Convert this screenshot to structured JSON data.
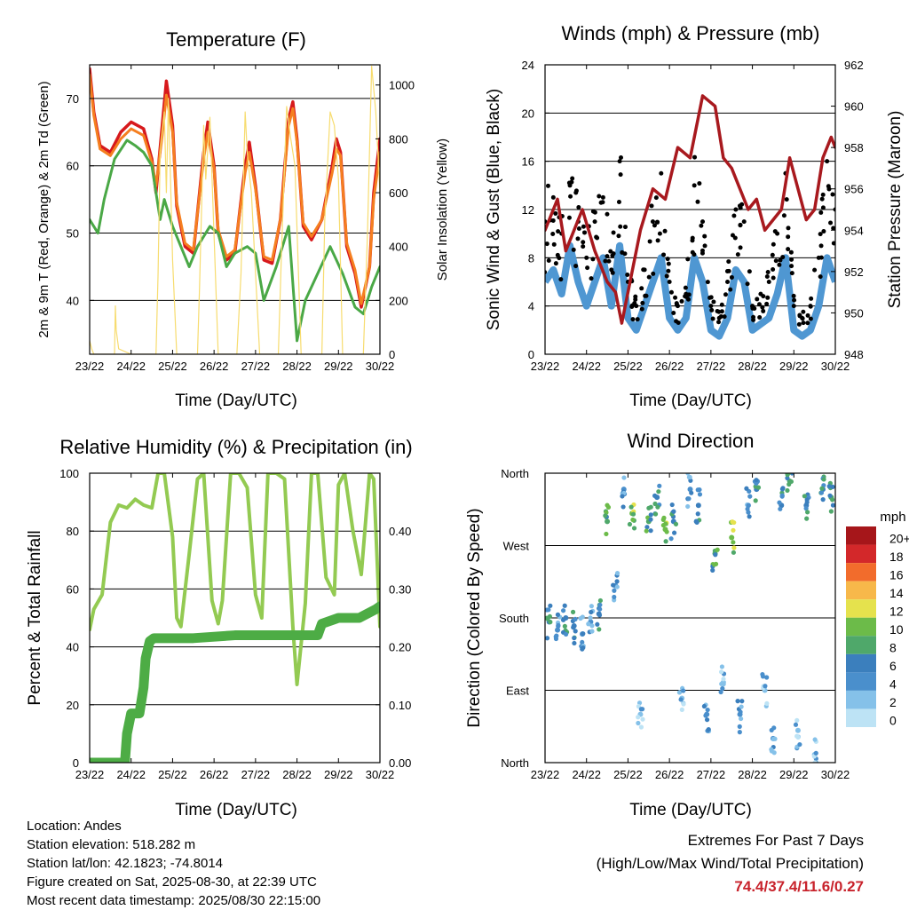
{
  "x_ticks": [
    "23/22",
    "24/22",
    "25/22",
    "26/22",
    "27/22",
    "28/22",
    "29/22",
    "30/22"
  ],
  "info": {
    "location": "Location: Andes",
    "elevation": "Station elevation: 518.282 m",
    "latlon": "Station lat/lon: 42.1823; -74.8014",
    "created": "Figure created on Sat, 2025-08-30, at 22:39 UTC",
    "recent": "Most recent data timestamp: 2025/08/30 22:15:00"
  },
  "extremes": {
    "title": "Extremes For Past 7 Days",
    "subtitle": "(High/Low/Max Wind/Total Precipitation)",
    "values": "74.4/37.4/11.6/0.27"
  },
  "colors": {
    "temp_2m": "#d7191c",
    "temp_9m": "#f57f20",
    "dewpoint": "#4aa846",
    "solar": "#f7dc6f",
    "sonic_wind": "#4f97d2",
    "gust": "#000000",
    "pressure": "#a8191e",
    "rh": "#93ca52",
    "precip": "#4dac45"
  },
  "chart_data": [
    {
      "type": "line",
      "title": "Temperature (F)",
      "xlabel": "Time (Day/UTC)",
      "ylabel": "2m & 9m T (Red, Orange) & 2m Td (Green)",
      "ylabel_right": "Solar Insolation (Yellow)",
      "ylim": [
        32,
        75
      ],
      "yticks": [
        40,
        50,
        60,
        70
      ],
      "ylim_right": [
        0,
        1075
      ],
      "yticks_right": [
        0,
        200,
        400,
        600,
        800,
        1000
      ],
      "xlim": [
        0,
        7
      ],
      "grid": true,
      "series": [
        {
          "key": "temp_2m",
          "x": [
            0,
            0.1,
            0.25,
            0.5,
            0.75,
            1,
            1.3,
            1.5,
            1.6,
            1.75,
            1.85,
            2.0,
            2.1,
            2.3,
            2.5,
            2.75,
            2.85,
            3.0,
            3.1,
            3.3,
            3.5,
            3.75,
            3.85,
            4.0,
            4.2,
            4.4,
            4.6,
            4.8,
            4.9,
            5.0,
            5.15,
            5.35,
            5.6,
            5.85,
            5.95,
            6.05,
            6.2,
            6.4,
            6.55,
            6.75,
            6.85,
            7.0
          ],
          "values": [
            74.4,
            68,
            63,
            62,
            65,
            66.5,
            65.5,
            61,
            56,
            66,
            72.6,
            66,
            54,
            48,
            47,
            62,
            66.5,
            60,
            50,
            46,
            47,
            60,
            63.5,
            57,
            46,
            45.5,
            52,
            67,
            69.5,
            64,
            51,
            49,
            52,
            60,
            64,
            62,
            48,
            44,
            39,
            45,
            56,
            64
          ]
        },
        {
          "key": "temp_9m",
          "x": [
            0,
            0.1,
            0.25,
            0.5,
            0.75,
            1,
            1.3,
            1.5,
            1.6,
            1.75,
            1.85,
            2.0,
            2.1,
            2.3,
            2.5,
            2.75,
            2.85,
            3.0,
            3.1,
            3.3,
            3.5,
            3.75,
            3.85,
            4.0,
            4.2,
            4.4,
            4.6,
            4.8,
            4.9,
            5.0,
            5.15,
            5.35,
            5.6,
            5.85,
            5.95,
            6.05,
            6.2,
            6.4,
            6.55,
            6.75,
            6.85,
            7.0
          ],
          "values": [
            73.5,
            67.5,
            62.5,
            61.5,
            64,
            65.5,
            64.5,
            60.5,
            57,
            64.5,
            70.5,
            65,
            54.5,
            48.5,
            47.5,
            61,
            65,
            59.5,
            50.5,
            46.5,
            47.5,
            59,
            62,
            56.5,
            46.5,
            46,
            52,
            66,
            68.5,
            63.5,
            51.5,
            49.5,
            52,
            59,
            62.5,
            61.5,
            48.5,
            44.5,
            39.5,
            45,
            55,
            62
          ]
        },
        {
          "key": "dewpoint",
          "x": [
            0,
            0.2,
            0.35,
            0.6,
            0.9,
            1.1,
            1.3,
            1.5,
            1.7,
            1.8,
            2.0,
            2.2,
            2.4,
            2.6,
            2.9,
            3.1,
            3.3,
            3.5,
            3.8,
            4.0,
            4.2,
            4.5,
            4.8,
            5.0,
            5.2,
            5.5,
            5.8,
            6.1,
            6.4,
            6.6,
            6.8,
            7.0
          ],
          "values": [
            52,
            50,
            55,
            61,
            63.8,
            63,
            62,
            60,
            52,
            55,
            51,
            48,
            45,
            48,
            51,
            50,
            45,
            47,
            48,
            47,
            40,
            45,
            51,
            34,
            40,
            44,
            48,
            44,
            39,
            38,
            42,
            45
          ]
        },
        {
          "key": "solar",
          "axis": "right",
          "x": [
            0,
            0.05,
            0.1,
            0.3,
            0.6,
            0.62,
            0.64,
            0.7,
            1.0,
            1.6,
            1.65,
            1.7,
            1.8,
            1.85,
            1.9,
            2.0,
            2.1,
            2.6,
            2.65,
            2.75,
            2.8,
            2.9,
            3.1,
            3.55,
            3.65,
            3.75,
            3.8,
            3.9,
            4.1,
            4.55,
            4.62,
            4.75,
            4.85,
            4.95,
            5.1,
            5.6,
            5.67,
            5.8,
            5.9,
            6.0,
            6.1,
            6.6,
            6.7,
            6.8,
            6.9,
            7.0
          ],
          "values": [
            50,
            20,
            0,
            0,
            0,
            180,
            90,
            20,
            0,
            0,
            300,
            750,
            900,
            600,
            950,
            350,
            0,
            0,
            250,
            850,
            650,
            880,
            0,
            0,
            300,
            900,
            750,
            600,
            0,
            0,
            350,
            920,
            800,
            700,
            0,
            0,
            500,
            900,
            850,
            650,
            0,
            0,
            450,
            1070,
            900,
            600
          ]
        }
      ]
    },
    {
      "type": "scatter",
      "title": "Winds (mph) & Pressure (mb)",
      "xlabel": "Time (Day/UTC)",
      "ylabel": "Sonic Wind & Gust (Blue, Black)",
      "ylabel_right": "Station Pressure (Maroon)",
      "ylim": [
        0,
        24
      ],
      "yticks": [
        0,
        4,
        8,
        12,
        16,
        20,
        24
      ],
      "ylim_right": [
        948,
        962
      ],
      "yticks_right": [
        948,
        950,
        952,
        954,
        956,
        958,
        960,
        962
      ],
      "xlim": [
        0,
        7
      ],
      "grid": true,
      "series": [
        {
          "key": "sonic_wind",
          "x": [
            0,
            0.2,
            0.4,
            0.6,
            0.8,
            1.0,
            1.2,
            1.4,
            1.6,
            1.8,
            2.0,
            2.2,
            2.4,
            2.6,
            2.8,
            3.0,
            3.2,
            3.4,
            3.6,
            3.8,
            4.0,
            4.2,
            4.4,
            4.6,
            4.8,
            5.0,
            5.2,
            5.4,
            5.6,
            5.8,
            6.0,
            6.2,
            6.4,
            6.6,
            6.8,
            7.0
          ],
          "values": [
            6,
            7,
            5,
            9,
            6,
            4,
            6,
            8,
            4,
            9,
            3,
            2,
            4,
            6,
            8,
            3,
            2,
            3,
            8,
            6,
            2,
            1.5,
            3,
            7,
            6,
            2,
            2.5,
            3,
            5,
            8,
            2,
            1.5,
            2,
            4,
            8,
            6
          ]
        },
        {
          "key": "gust",
          "x": [
            0,
            0.2,
            0.4,
            0.6,
            0.8,
            1.0,
            1.2,
            1.4,
            1.6,
            1.8,
            2.0,
            2.2,
            2.4,
            2.6,
            2.8,
            3.0,
            3.2,
            3.4,
            3.6,
            3.8,
            4.0,
            4.2,
            4.4,
            4.6,
            4.8,
            5.0,
            5.2,
            5.4,
            5.6,
            5.8,
            6.0,
            6.2,
            6.4,
            6.6,
            6.8,
            7.0
          ],
          "values": [
            11,
            13,
            10,
            14,
            11,
            8,
            11,
            13,
            7,
            16,
            6,
            4,
            7,
            11,
            15,
            6,
            4,
            5,
            14,
            11,
            4,
            3,
            6,
            12,
            11,
            4,
            5,
            6,
            10,
            15,
            4,
            3,
            4,
            8,
            16,
            12
          ]
        },
        {
          "key": "pressure",
          "axis": "right",
          "x": [
            0,
            0.3,
            0.5,
            0.9,
            1.2,
            1.5,
            1.7,
            1.85,
            2.0,
            2.3,
            2.6,
            2.9,
            3.2,
            3.5,
            3.8,
            4.1,
            4.3,
            4.5,
            4.7,
            4.9,
            5.1,
            5.3,
            5.5,
            5.7,
            5.9,
            6.1,
            6.3,
            6.5,
            6.7,
            6.9,
            7.0
          ],
          "values": [
            954,
            955.5,
            953,
            955,
            953,
            951.5,
            951,
            949.5,
            951,
            954,
            956,
            955.5,
            958,
            957.5,
            960.5,
            960,
            957.5,
            957,
            956,
            955,
            955.5,
            954,
            954.5,
            955,
            957.5,
            956,
            954.5,
            955,
            957.5,
            958.5,
            958
          ]
        }
      ]
    },
    {
      "type": "line",
      "title": "Relative Humidity (%) & Precipitation (in)",
      "xlabel": "Time (Day/UTC)",
      "ylabel": "Percent & Total Rainfall",
      "ylim": [
        0,
        100
      ],
      "yticks": [
        0,
        20,
        40,
        60,
        80,
        100
      ],
      "ylim_right": [
        0,
        0.5
      ],
      "yticks_right": [
        "0.00",
        "0.10",
        "0.20",
        "0.30",
        "0.40"
      ],
      "xlim": [
        0,
        7
      ],
      "grid": true,
      "series": [
        {
          "key": "rh",
          "x": [
            0,
            0.1,
            0.3,
            0.5,
            0.7,
            0.9,
            1.1,
            1.3,
            1.5,
            1.65,
            1.8,
            2.0,
            2.1,
            2.2,
            2.4,
            2.6,
            2.75,
            2.95,
            3.1,
            3.2,
            3.4,
            3.6,
            3.8,
            4.0,
            4.15,
            4.3,
            4.5,
            4.7,
            4.9,
            5.0,
            5.2,
            5.35,
            5.5,
            5.7,
            5.9,
            6.0,
            6.15,
            6.35,
            6.55,
            6.75,
            6.85,
            7.0
          ],
          "values": [
            46,
            53,
            58,
            83,
            89,
            88,
            91,
            89,
            88,
            100,
            100,
            78,
            50,
            47,
            72,
            98,
            100,
            56,
            48,
            56,
            100,
            100,
            95,
            58,
            50,
            100,
            100,
            98,
            47,
            27,
            55,
            100,
            100,
            64,
            58,
            96,
            100,
            80,
            65,
            100,
            98,
            47
          ]
        },
        {
          "key": "precip",
          "axis": "right",
          "x": [
            0,
            0.5,
            0.85,
            0.9,
            1.0,
            1.2,
            1.3,
            1.35,
            1.45,
            1.55,
            2.5,
            3.5,
            4.0,
            4.5,
            5.0,
            5.5,
            5.6,
            6.0,
            6.5,
            6.9,
            7.0
          ],
          "values": [
            0,
            0,
            0,
            0.05,
            0.085,
            0.085,
            0.13,
            0.18,
            0.21,
            0.215,
            0.215,
            0.22,
            0.22,
            0.22,
            0.22,
            0.22,
            0.24,
            0.25,
            0.25,
            0.265,
            0.27
          ]
        }
      ]
    },
    {
      "type": "scatter",
      "title": "Wind Direction",
      "xlabel": "Time (Day/UTC)",
      "ylabel": "Direction (Colored By Speed)",
      "yticks": [
        "North",
        "East",
        "South",
        "West",
        "North"
      ],
      "ylim": [
        0,
        360
      ],
      "xlim": [
        0,
        7
      ],
      "grid": true,
      "colorbar": {
        "title": "mph",
        "labels": [
          "0",
          "2",
          "4",
          "6",
          "8",
          "10",
          "12",
          "14",
          "16",
          "18",
          "20+"
        ],
        "colors": [
          "#bde3f5",
          "#85c1e9",
          "#4a8fcc",
          "#3b7fbd",
          "#4fa86a",
          "#6cbb49",
          "#e5e24d",
          "#f7b84a",
          "#f26c2c",
          "#d3282a",
          "#a6161a"
        ]
      },
      "series": [
        {
          "name": "",
          "x": [
            0.1,
            0.3,
            0.5,
            0.7,
            0.9,
            1.1,
            1.3,
            1.5,
            1.7,
            1.9,
            2.1,
            2.3,
            2.5,
            2.7,
            2.9,
            3.1,
            3.3,
            3.5,
            3.7,
            3.9,
            4.1,
            4.3,
            4.5,
            4.7,
            4.9,
            5.1,
            5.3,
            5.5,
            5.7,
            5.9,
            6.1,
            6.3,
            6.5,
            6.7,
            6.9
          ],
          "values": [
            175,
            165,
            180,
            170,
            160,
            175,
            185,
            300,
            220,
            340,
            310,
            60,
            300,
            330,
            290,
            300,
            80,
            340,
            320,
            60,
            260,
            100,
            280,
            60,
            320,
            340,
            90,
            30,
            320,
            350,
            40,
            320,
            10,
            340,
            330
          ],
          "speed": [
            5,
            4,
            6,
            5,
            3,
            4,
            5,
            8,
            3,
            4,
            9,
            2,
            8,
            6,
            9,
            5,
            2,
            4,
            6,
            3,
            7,
            2,
            9,
            3,
            4,
            6,
            2,
            3,
            6,
            7,
            2,
            5,
            2,
            6,
            8
          ]
        }
      ]
    }
  ]
}
